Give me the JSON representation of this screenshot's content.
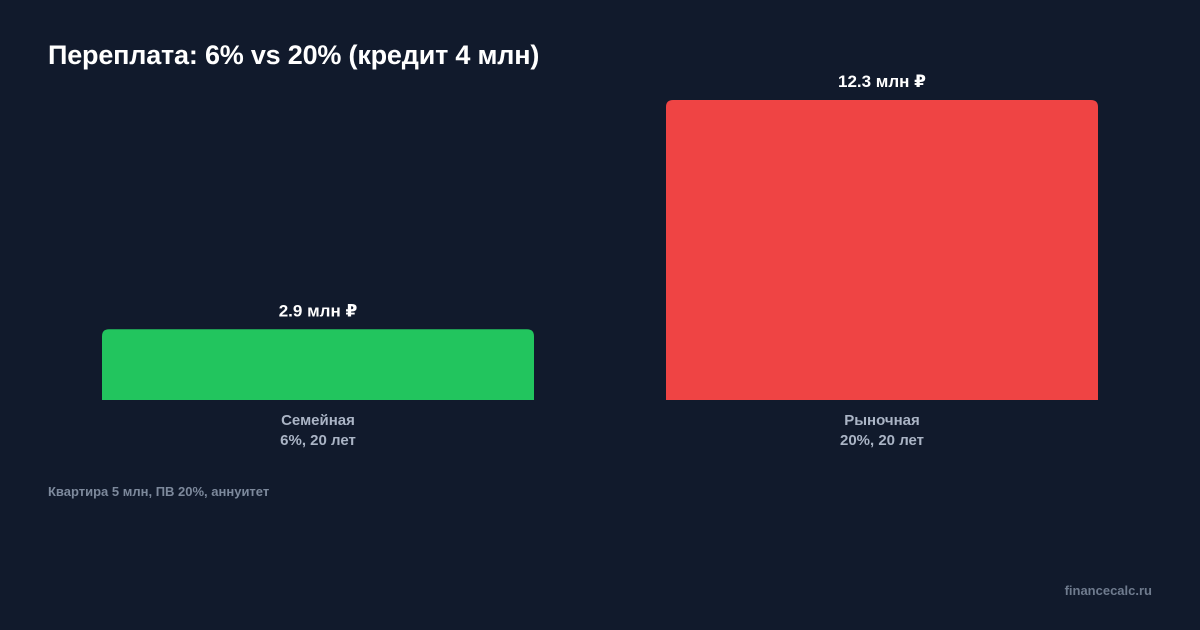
{
  "colors": {
    "background": "#111a2c",
    "category_label": "#aab4c5",
    "footnote": "#7d899c"
  },
  "chart_data": {
    "type": "bar",
    "title": "Переплата: 6% vs 20% (кредит 4 млн)",
    "unit": "млн ₽",
    "categories": [
      {
        "line1": "Семейная",
        "line2": "6%, 20 лет"
      },
      {
        "line1": "Рыночная",
        "line2": "20%, 20 лет"
      }
    ],
    "values": [
      2.9,
      12.3
    ],
    "value_labels": [
      "2.9 млн ₽",
      "12.3 млн ₽"
    ],
    "bar_colors": [
      "#22c55e",
      "#ef4444"
    ],
    "ylim": [
      0,
      12.3
    ],
    "grid": false,
    "legend": "none"
  },
  "footnote": "Квартира 5 млн, ПВ 20%, аннуитет",
  "watermark": "financecalc.ru"
}
